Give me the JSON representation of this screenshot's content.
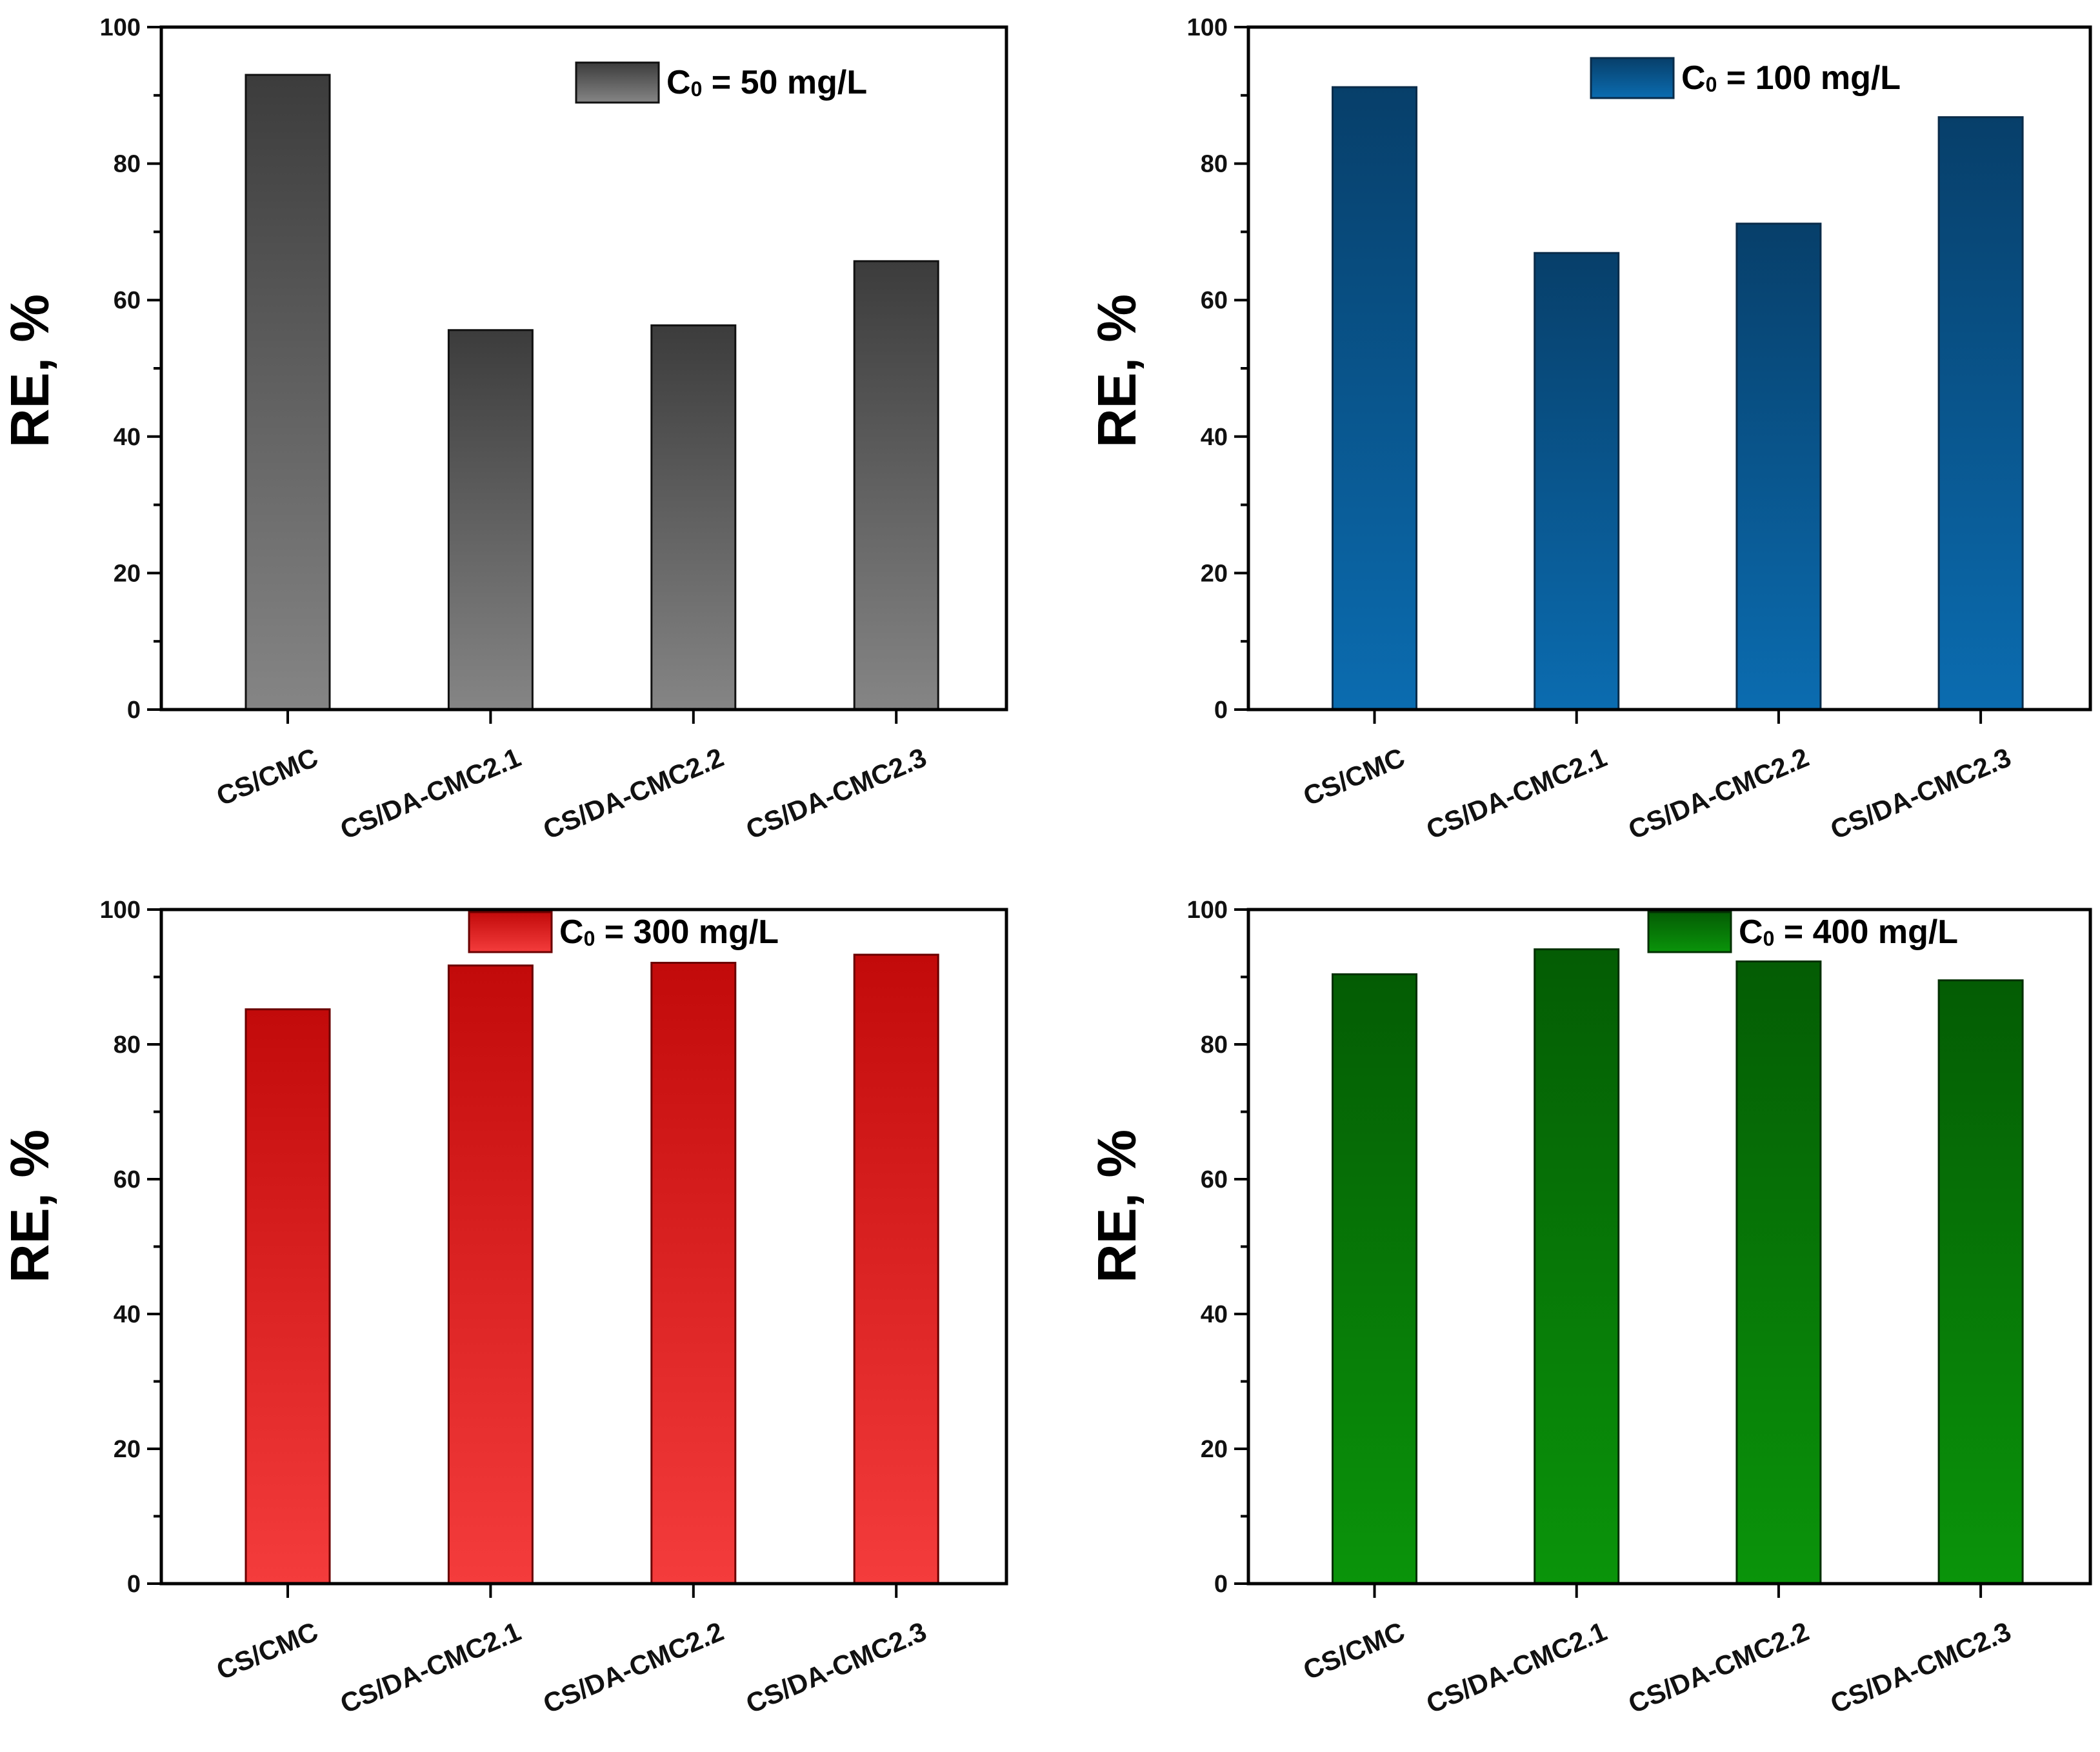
{
  "chart_data": [
    {
      "type": "bar",
      "ylabel": "RE, %",
      "ylim": [
        0,
        100
      ],
      "yticks": [
        "0",
        "20",
        "40",
        "60",
        "80",
        "100"
      ],
      "categories": [
        "CS/CMC",
        "CS/DA-CMC2.1",
        "CS/DA-CMC2.2",
        "CS/DA-CMC2.3"
      ],
      "values": [
        93,
        55.6,
        56.3,
        65.7
      ],
      "legend": {
        "prefix": "C",
        "sub": "0",
        "suffix": " = 50 mg/L"
      },
      "colors": {
        "dark": "#3c3c3c",
        "light": "#858585",
        "stroke": "#111111"
      }
    },
    {
      "type": "bar",
      "ylabel": "RE, %",
      "ylim": [
        0,
        100
      ],
      "yticks": [
        "0",
        "20",
        "40",
        "60",
        "80",
        "100"
      ],
      "categories": [
        "CS/CMC",
        "CS/DA-CMC2.1",
        "CS/DA-CMC2.2",
        "CS/DA-CMC2.3"
      ],
      "values": [
        91.2,
        66.9,
        71.2,
        86.8
      ],
      "legend": {
        "prefix": "C",
        "sub": "0",
        "suffix": " = 100 mg/L"
      },
      "colors": {
        "dark": "#073f6a",
        "light": "#0b6cb0",
        "stroke": "#0a2c4a"
      }
    },
    {
      "type": "bar",
      "ylabel": "RE, %",
      "ylim": [
        0,
        100
      ],
      "yticks": [
        "0",
        "20",
        "40",
        "60",
        "80",
        "100"
      ],
      "categories": [
        "CS/CMC",
        "CS/DA-CMC2.1",
        "CS/DA-CMC2.2",
        "CS/DA-CMC2.3"
      ],
      "values": [
        85.2,
        91.7,
        92.1,
        93.3
      ],
      "legend": {
        "prefix": "C",
        "sub": "0",
        "suffix": " = 300 mg/L"
      },
      "colors": {
        "dark": "#c20a0a",
        "light": "#f43c3c",
        "stroke": "#6a0000"
      }
    },
    {
      "type": "bar",
      "ylabel": "RE, %",
      "ylim": [
        0,
        100
      ],
      "yticks": [
        "0",
        "20",
        "40",
        "60",
        "80",
        "100"
      ],
      "categories": [
        "CS/CMC",
        "CS/DA-CMC2.1",
        "CS/DA-CMC2.2",
        "CS/DA-CMC2.3"
      ],
      "values": [
        90.4,
        94.1,
        92.3,
        89.5
      ],
      "legend": {
        "prefix": "C",
        "sub": "0",
        "suffix": " = 400 mg/L"
      },
      "colors": {
        "dark": "#045c04",
        "light": "#0a940a",
        "stroke": "#033003"
      }
    }
  ]
}
